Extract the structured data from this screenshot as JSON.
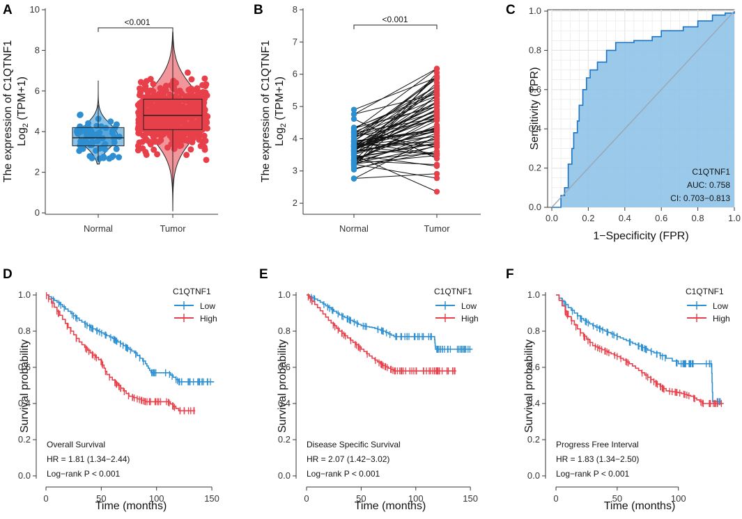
{
  "colors": {
    "normal": "#2d8fd1",
    "tumor": "#e8404a",
    "roc_fill": "#8fc3e8",
    "roc_line": "#1a72c2",
    "diag": "#9aa8b8"
  },
  "panels": {
    "A": {
      "letter": "A",
      "ylabel_line1": "The expression of C1QTNF1",
      "ylabel_line2": "Log",
      "ylabel_sub": "2",
      "ylabel_tail": " (TPM+1)",
      "pvalue": "<0.001"
    },
    "B": {
      "letter": "B",
      "ylabel_line1": "The expression of C1QTNF1",
      "ylabel_line2": "Log",
      "ylabel_sub": "2",
      "ylabel_tail": " (TPM+1)",
      "pvalue": "<0.001"
    },
    "C": {
      "letter": "C",
      "xlabel": "1−Specificity (FPR)",
      "ylabel": "Sensitivity (TPR)",
      "gene": "C1QTNF1",
      "auc": "AUC: 0.758",
      "ci": "CI: 0.703−0.813"
    },
    "D": {
      "letter": "D",
      "legend_title": "C1QTNF1",
      "low": "Low",
      "high": "High",
      "xlabel": "Time (months)",
      "ylabel": "Survival probability",
      "survival": "Overall Survival",
      "hr": "HR = 1.81 (1.34−2.44)",
      "logrank": "Log−rank P < 0.001"
    },
    "E": {
      "letter": "E",
      "legend_title": "C1QTNF1",
      "low": "Low",
      "high": "High",
      "xlabel": "Time (months)",
      "ylabel": "Survival probability",
      "survival": "Disease Specific Survival",
      "hr": "HR = 2.07 (1.42−3.02)",
      "logrank": "Log−rank P < 0.001"
    },
    "F": {
      "letter": "F",
      "legend_title": "C1QTNF1",
      "low": "Low",
      "high": "High",
      "xlabel": "Time (months)",
      "ylabel": "Survival probability",
      "survival": "Progress Free Interval",
      "hr": "HR = 1.83 (1.34−2.50)",
      "logrank": "Log−rank P < 0.001"
    }
  },
  "chart_data": [
    {
      "id": "A",
      "type": "scatter",
      "subtype": "violin-box-jitter",
      "categories": [
        "Normal",
        "Tumor"
      ],
      "ylim": [
        0,
        10
      ],
      "yticks": [
        0,
        2,
        4,
        6,
        8,
        10
      ],
      "box": {
        "Normal": {
          "min": 2.5,
          "q1": 3.3,
          "median": 3.7,
          "q3": 4.2,
          "max": 5.3
        },
        "Tumor": {
          "min": 0.2,
          "q1": 4.1,
          "median": 4.8,
          "q3": 5.6,
          "max": 8.8
        }
      }
    },
    {
      "id": "B",
      "type": "line",
      "subtype": "paired-points",
      "categories": [
        "Normal",
        "Tumor"
      ],
      "ylim": [
        1.7,
        8
      ],
      "yticks": [
        2,
        3,
        4,
        5,
        6,
        7,
        8
      ]
    },
    {
      "id": "C",
      "type": "line",
      "subtype": "roc",
      "xlim": [
        0,
        1
      ],
      "ylim": [
        0,
        1
      ],
      "ticks": [
        0.0,
        0.2,
        0.4,
        0.6,
        0.8,
        1.0
      ],
      "roc": [
        [
          0,
          0
        ],
        [
          0.04,
          0
        ],
        [
          0.05,
          0.06
        ],
        [
          0.07,
          0.1
        ],
        [
          0.09,
          0.22
        ],
        [
          0.11,
          0.3
        ],
        [
          0.12,
          0.38
        ],
        [
          0.14,
          0.44
        ],
        [
          0.15,
          0.52
        ],
        [
          0.17,
          0.6
        ],
        [
          0.19,
          0.66
        ],
        [
          0.21,
          0.7
        ],
        [
          0.25,
          0.74
        ],
        [
          0.3,
          0.8
        ],
        [
          0.35,
          0.84
        ],
        [
          0.45,
          0.85
        ],
        [
          0.55,
          0.87
        ],
        [
          0.6,
          0.9
        ],
        [
          0.72,
          0.92
        ],
        [
          0.8,
          0.95
        ],
        [
          0.88,
          0.98
        ],
        [
          0.95,
          0.99
        ],
        [
          1,
          1
        ]
      ]
    },
    {
      "id": "D",
      "type": "line",
      "subtype": "kaplan-meier",
      "xlim": [
        0,
        155
      ],
      "ylim": [
        0,
        1
      ],
      "xticks": [
        0,
        50,
        100,
        150
      ],
      "yticks": [
        0.0,
        0.2,
        0.4,
        0.6,
        0.8,
        1.0
      ],
      "series": [
        {
          "name": "Low",
          "points": [
            [
              0,
              1
            ],
            [
              10,
              0.96
            ],
            [
              20,
              0.91
            ],
            [
              30,
              0.86
            ],
            [
              40,
              0.82
            ],
            [
              50,
              0.79
            ],
            [
              60,
              0.76
            ],
            [
              70,
              0.72
            ],
            [
              80,
              0.68
            ],
            [
              90,
              0.62
            ],
            [
              95,
              0.57
            ],
            [
              110,
              0.57
            ],
            [
              120,
              0.52
            ],
            [
              152,
              0.52
            ]
          ]
        },
        {
          "name": "High",
          "points": [
            [
              0,
              1
            ],
            [
              10,
              0.91
            ],
            [
              20,
              0.82
            ],
            [
              30,
              0.74
            ],
            [
              40,
              0.68
            ],
            [
              50,
              0.63
            ],
            [
              55,
              0.56
            ],
            [
              65,
              0.5
            ],
            [
              75,
              0.44
            ],
            [
              90,
              0.41
            ],
            [
              110,
              0.41
            ],
            [
              120,
              0.36
            ],
            [
              135,
              0.36
            ]
          ]
        }
      ]
    },
    {
      "id": "E",
      "type": "line",
      "subtype": "kaplan-meier",
      "xlim": [
        0,
        155
      ],
      "ylim": [
        0,
        1
      ],
      "xticks": [
        0,
        50,
        100,
        150
      ],
      "yticks": [
        0.0,
        0.2,
        0.4,
        0.6,
        0.8,
        1.0
      ],
      "series": [
        {
          "name": "Low",
          "points": [
            [
              0,
              1
            ],
            [
              10,
              0.97
            ],
            [
              20,
              0.93
            ],
            [
              30,
              0.89
            ],
            [
              40,
              0.86
            ],
            [
              50,
              0.83
            ],
            [
              60,
              0.82
            ],
            [
              70,
              0.8
            ],
            [
              80,
              0.77
            ],
            [
              100,
              0.77
            ],
            [
              117,
              0.77
            ],
            [
              118,
              0.7
            ],
            [
              152,
              0.7
            ]
          ]
        },
        {
          "name": "High",
          "points": [
            [
              0,
              1
            ],
            [
              10,
              0.93
            ],
            [
              20,
              0.86
            ],
            [
              30,
              0.8
            ],
            [
              40,
              0.75
            ],
            [
              50,
              0.7
            ],
            [
              60,
              0.65
            ],
            [
              70,
              0.61
            ],
            [
              80,
              0.58
            ],
            [
              100,
              0.58
            ],
            [
              137,
              0.58
            ]
          ]
        }
      ]
    },
    {
      "id": "F",
      "type": "line",
      "subtype": "kaplan-meier",
      "xlim": [
        0,
        140
      ],
      "ylim": [
        0,
        1
      ],
      "xticks": [
        0,
        50,
        100
      ],
      "yticks": [
        0.0,
        0.2,
        0.4,
        0.6,
        0.8,
        1.0
      ],
      "series": [
        {
          "name": "Low",
          "points": [
            [
              0,
              1
            ],
            [
              10,
              0.93
            ],
            [
              20,
              0.87
            ],
            [
              30,
              0.83
            ],
            [
              40,
              0.8
            ],
            [
              50,
              0.77
            ],
            [
              60,
              0.74
            ],
            [
              70,
              0.71
            ],
            [
              80,
              0.68
            ],
            [
              100,
              0.62
            ],
            [
              127,
              0.62
            ],
            [
              128,
              0.41
            ],
            [
              135,
              0.41
            ]
          ]
        },
        {
          "name": "High",
          "points": [
            [
              0,
              1
            ],
            [
              10,
              0.88
            ],
            [
              20,
              0.79
            ],
            [
              30,
              0.72
            ],
            [
              40,
              0.69
            ],
            [
              50,
              0.66
            ],
            [
              60,
              0.62
            ],
            [
              70,
              0.57
            ],
            [
              80,
              0.52
            ],
            [
              90,
              0.47
            ],
            [
              100,
              0.46
            ],
            [
              110,
              0.44
            ],
            [
              120,
              0.4
            ],
            [
              137,
              0.4
            ]
          ]
        }
      ]
    }
  ]
}
